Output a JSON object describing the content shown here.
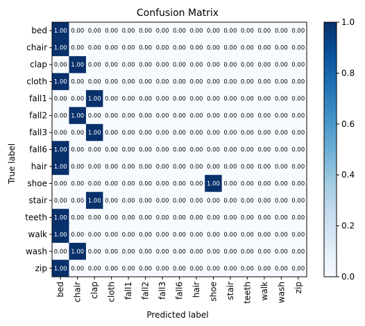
{
  "chart_data": {
    "type": "heatmap",
    "title": "Confusion Matrix",
    "xlabel": "Predicted label",
    "ylabel": "True label",
    "labels": [
      "bed",
      "chair",
      "clap",
      "cloth",
      "fall1",
      "fall2",
      "fall3",
      "fall6",
      "hair",
      "shoe",
      "stair",
      "teeth",
      "walk",
      "wash",
      "zip"
    ],
    "values": [
      [
        1,
        0,
        0,
        0,
        0,
        0,
        0,
        0,
        0,
        0,
        0,
        0,
        0,
        0,
        0
      ],
      [
        1,
        0,
        0,
        0,
        0,
        0,
        0,
        0,
        0,
        0,
        0,
        0,
        0,
        0,
        0
      ],
      [
        0,
        1,
        0,
        0,
        0,
        0,
        0,
        0,
        0,
        0,
        0,
        0,
        0,
        0,
        0
      ],
      [
        1,
        0,
        0,
        0,
        0,
        0,
        0,
        0,
        0,
        0,
        0,
        0,
        0,
        0,
        0
      ],
      [
        0,
        0,
        1,
        0,
        0,
        0,
        0,
        0,
        0,
        0,
        0,
        0,
        0,
        0,
        0
      ],
      [
        0,
        1,
        0,
        0,
        0,
        0,
        0,
        0,
        0,
        0,
        0,
        0,
        0,
        0,
        0
      ],
      [
        0,
        0,
        1,
        0,
        0,
        0,
        0,
        0,
        0,
        0,
        0,
        0,
        0,
        0,
        0
      ],
      [
        1,
        0,
        0,
        0,
        0,
        0,
        0,
        0,
        0,
        0,
        0,
        0,
        0,
        0,
        0
      ],
      [
        1,
        0,
        0,
        0,
        0,
        0,
        0,
        0,
        0,
        0,
        0,
        0,
        0,
        0,
        0
      ],
      [
        0,
        0,
        0,
        0,
        0,
        0,
        0,
        0,
        0,
        1,
        0,
        0,
        0,
        0,
        0
      ],
      [
        0,
        0,
        1,
        0,
        0,
        0,
        0,
        0,
        0,
        0,
        0,
        0,
        0,
        0,
        0
      ],
      [
        1,
        0,
        0,
        0,
        0,
        0,
        0,
        0,
        0,
        0,
        0,
        0,
        0,
        0,
        0
      ],
      [
        1,
        0,
        0,
        0,
        0,
        0,
        0,
        0,
        0,
        0,
        0,
        0,
        0,
        0,
        0
      ],
      [
        0,
        1,
        0,
        0,
        0,
        0,
        0,
        0,
        0,
        0,
        0,
        0,
        0,
        0,
        0
      ],
      [
        1,
        0,
        0,
        0,
        0,
        0,
        0,
        0,
        0,
        0,
        0,
        0,
        0,
        0,
        0
      ]
    ],
    "value_format": "0.00",
    "colormap": "Blues",
    "colorbar": {
      "range": [
        0.0,
        1.0
      ],
      "ticks": [
        "0.0",
        "0.2",
        "0.4",
        "0.6",
        "0.8",
        "1.0"
      ]
    },
    "colors": {
      "low": "#f7fbff",
      "high": "#08306b"
    }
  }
}
